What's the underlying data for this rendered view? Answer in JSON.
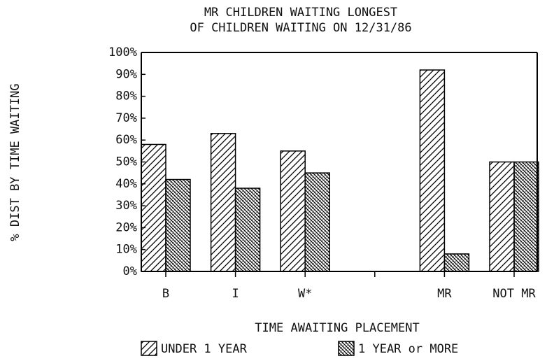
{
  "chart_data": {
    "type": "bar",
    "title": "MR CHILDREN WAITING LONGEST",
    "subtitle": "OF CHILDREN WAITING ON 12/31/86",
    "x_label": "TIME AWAITING PLACEMENT",
    "y_label": "% DIST BY TIME WAITING",
    "categories": [
      "B",
      "I",
      "W*",
      null,
      "MR",
      "NOT MR"
    ],
    "series": [
      {
        "name": "UNDER 1 YEAR",
        "color": "#000000",
        "pattern": "diagonal",
        "values": [
          58,
          63,
          55,
          null,
          92,
          50
        ]
      },
      {
        "name": "1 YEAR or MORE",
        "color": "#000000",
        "pattern": "dense-diagonal",
        "values": [
          42,
          38,
          45,
          null,
          8,
          50
        ]
      }
    ],
    "ylim": [
      0,
      100
    ],
    "yticks": [
      {
        "value": 0,
        "label": "0%"
      },
      {
        "value": 10,
        "label": "10%"
      },
      {
        "value": 20,
        "label": "20%"
      },
      {
        "value": 30,
        "label": "30%"
      },
      {
        "value": 40,
        "label": "40%"
      },
      {
        "value": 50,
        "label": "50%"
      },
      {
        "value": 60,
        "label": "60%"
      },
      {
        "value": 70,
        "label": "70%"
      },
      {
        "value": 80,
        "label": "80%"
      },
      {
        "value": 90,
        "label": "90%"
      },
      {
        "value": 100,
        "label": "100%"
      }
    ],
    "grid": false
  }
}
